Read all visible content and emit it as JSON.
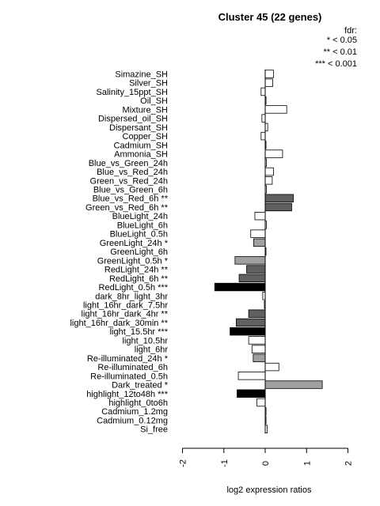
{
  "chart_data": {
    "type": "bar",
    "orientation": "horizontal",
    "title": "Cluster 45 (22 genes)",
    "xlabel": "log2 expression ratios",
    "ylabel": "",
    "xlim": [
      -2,
      2
    ],
    "xticks": [
      -2,
      -1,
      0,
      1,
      2
    ],
    "xtick_labels": [
      "-2",
      "-1",
      "0",
      "1",
      "2"
    ],
    "legend": {
      "title": "fdr:",
      "entries": [
        "* < 0.05",
        "** < 0.01",
        "*** < 0.001"
      ],
      "placement": "top-right"
    },
    "fill_colors": {
      "none": "#ffffff",
      "*": "#a0a0a0",
      "**": "#606060",
      "***": "#000000"
    },
    "categories": [
      "Simazine_SH",
      "Silver_SH",
      "Salinity_15ppt_SH",
      "Oil_SH",
      "Mixture_SH",
      "Dispersed_oil_SH",
      "Dispersant_SH",
      "Copper_SH",
      "Cadmium_SH",
      "Ammonia_SH",
      "Blue_vs_Green_24h",
      "Blue_vs_Red_24h",
      "Green_vs_Red_24h",
      "Blue_vs_Green_6h",
      "Blue_vs_Red_6h **",
      "Green_vs_Red_6h **",
      "BlueLight_24h",
      "BlueLight_6h",
      "BlueLight_0.5h",
      "GreenLight_24h *",
      "GreenLight_6h",
      "GreenLight_0.5h *",
      "RedLight_24h **",
      "RedLight_6h **",
      "RedLight_0.5h ***",
      "dark_8hr_light_3hr",
      "light_16hr_dark_7.5hr",
      "light_16hr_dark_4hr **",
      "light_16hr_dark_30min **",
      "light_15.5hr ***",
      "light_10.5hr",
      "light_6hr",
      "Re-illuminated_24h *",
      "Re-illuminated_6h",
      "Re-illuminated_0.5h",
      "Dark_treated *",
      "highlight_12to48h ***",
      "highlight_0to6h",
      "Cadmium_1.2mg",
      "Cadmium_0.12mg",
      "Si_free"
    ],
    "values": [
      0.2,
      0.18,
      -0.1,
      0.02,
      0.52,
      -0.08,
      0.06,
      -0.1,
      0.0,
      0.42,
      0.03,
      0.2,
      0.17,
      0.03,
      0.68,
      0.64,
      -0.25,
      0.03,
      -0.35,
      -0.28,
      0.0,
      -0.73,
      -0.45,
      -0.63,
      -1.22,
      -0.06,
      -0.02,
      -0.4,
      -0.7,
      -0.85,
      -0.4,
      -0.32,
      -0.29,
      0.33,
      -0.65,
      1.38,
      -0.68,
      -0.2,
      0.02,
      0.02,
      0.05
    ],
    "significance": [
      "",
      "",
      "",
      "",
      "",
      "",
      "",
      "",
      "",
      "",
      "",
      "",
      "",
      "",
      "**",
      "**",
      "",
      "",
      "",
      "*",
      "",
      "*",
      "**",
      "**",
      "***",
      "",
      "",
      "**",
      "**",
      "***",
      "",
      "",
      "*",
      "",
      "",
      "*",
      "***",
      "",
      "",
      "",
      ""
    ]
  }
}
